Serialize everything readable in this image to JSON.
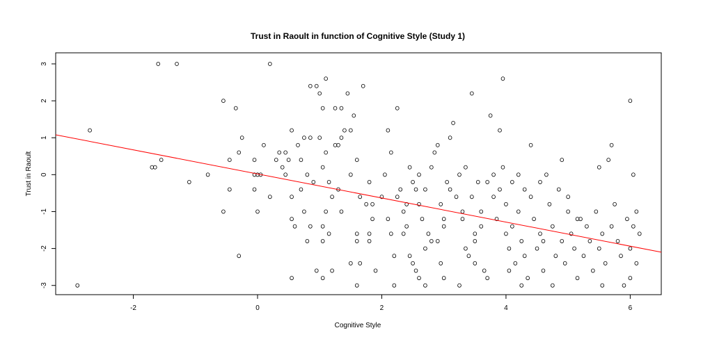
{
  "chart_data": {
    "type": "scatter",
    "title": "Trust in Raoult in function of Cognitive Style (Study 1)",
    "xlabel": "Cognitive Style",
    "ylabel": "Trust in Raoult",
    "xlim": [
      -3.25,
      6.5
    ],
    "ylim": [
      -3.25,
      3.3
    ],
    "xticks": [
      "-2",
      "0",
      "2",
      "4",
      "6"
    ],
    "yticks": [
      "-3",
      "-2",
      "-1",
      "0",
      "1",
      "2",
      "3"
    ],
    "grid": false,
    "point_style": "open-circle",
    "colors": {
      "points": "#000000",
      "fit_line": "#ff0000"
    },
    "fit_line": {
      "x": [
        -3.25,
        6.5
      ],
      "y": [
        1.08,
        -2.1
      ]
    },
    "points": [
      [
        -2.9,
        -3
      ],
      [
        -2.7,
        1.2
      ],
      [
        -1.6,
        3
      ],
      [
        -1.3,
        3
      ],
      [
        -1.55,
        0.4
      ],
      [
        -1.7,
        0.2
      ],
      [
        -1.65,
        0.2
      ],
      [
        -1.1,
        -0.2
      ],
      [
        -0.8,
        0
      ],
      [
        -0.55,
        2
      ],
      [
        -0.35,
        1.8
      ],
      [
        -0.3,
        0.6
      ],
      [
        -0.25,
        1
      ],
      [
        -0.45,
        0.4
      ],
      [
        -0.55,
        -1
      ],
      [
        -0.45,
        -0.4
      ],
      [
        -0.3,
        -2.2
      ],
      [
        -0.05,
        0
      ],
      [
        0,
        0
      ],
      [
        0.05,
        0
      ],
      [
        0.1,
        0.8
      ],
      [
        -0.05,
        0.4
      ],
      [
        -0.05,
        -0.4
      ],
      [
        0,
        -1
      ],
      [
        0.2,
        3
      ],
      [
        0.2,
        -0.6
      ],
      [
        0.35,
        0.6
      ],
      [
        0.45,
        0.6
      ],
      [
        0.4,
        0.2
      ],
      [
        0.45,
        0
      ],
      [
        0.5,
        0.4
      ],
      [
        0.55,
        1.2
      ],
      [
        0.55,
        -0.6
      ],
      [
        0.6,
        -1.4
      ],
      [
        0.55,
        -1.2
      ],
      [
        0.65,
        0.8
      ],
      [
        0.7,
        0.4
      ],
      [
        0.75,
        1
      ],
      [
        0.8,
        0
      ],
      [
        0.7,
        -0.4
      ],
      [
        0.75,
        -1
      ],
      [
        0.8,
        -1.8
      ],
      [
        0.85,
        1
      ],
      [
        0.85,
        -1.4
      ],
      [
        0.55,
        -2.8
      ],
      [
        0.85,
        2.4
      ],
      [
        0.95,
        2.4
      ],
      [
        1,
        2.2
      ],
      [
        1,
        1
      ],
      [
        1.05,
        1.8
      ],
      [
        1.1,
        2.6
      ],
      [
        1.1,
        0.6
      ],
      [
        1.05,
        0.2
      ],
      [
        1.15,
        -0.2
      ],
      [
        1.2,
        -0.6
      ],
      [
        1.1,
        -1
      ],
      [
        1.05,
        -1.4
      ],
      [
        1.15,
        -1.6
      ],
      [
        1.05,
        -1.8
      ],
      [
        1.25,
        1.8
      ],
      [
        1.25,
        0.8
      ],
      [
        1.3,
        0.8
      ],
      [
        1.3,
        -0.4
      ],
      [
        1.35,
        1
      ],
      [
        1.35,
        -1
      ],
      [
        1.4,
        1.2
      ],
      [
        1.45,
        2.2
      ],
      [
        1.5,
        1.2
      ],
      [
        1.55,
        1.6
      ],
      [
        1.5,
        0
      ],
      [
        1.6,
        0.4
      ],
      [
        1.6,
        -1.6
      ],
      [
        1.6,
        -1.8
      ],
      [
        1.65,
        -2.4
      ],
      [
        1.7,
        2.4
      ],
      [
        1.75,
        -0.8
      ],
      [
        1.8,
        -0.2
      ],
      [
        1.8,
        -1.6
      ],
      [
        1.8,
        -1.8
      ],
      [
        1.85,
        -0.8
      ],
      [
        1.9,
        -2.6
      ],
      [
        0.95,
        -2.6
      ],
      [
        1.05,
        -2.8
      ],
      [
        1.2,
        -2.6
      ],
      [
        1.5,
        -2.4
      ],
      [
        1.6,
        -3
      ],
      [
        2,
        -0.6
      ],
      [
        2.05,
        0
      ],
      [
        2.1,
        1.2
      ],
      [
        2.15,
        0.6
      ],
      [
        2.1,
        -1.2
      ],
      [
        2.15,
        -1.6
      ],
      [
        2.2,
        -2.2
      ],
      [
        2.25,
        1.8
      ],
      [
        2.25,
        -0.6
      ],
      [
        2.3,
        -0.4
      ],
      [
        2.35,
        -1
      ],
      [
        2.4,
        -1.4
      ],
      [
        2.45,
        0.2
      ],
      [
        2.5,
        -0.2
      ],
      [
        2.55,
        -0.4
      ],
      [
        2.6,
        0
      ],
      [
        2.6,
        -0.8
      ],
      [
        2.65,
        -1.2
      ],
      [
        2.7,
        -2
      ],
      [
        2.7,
        -0.4
      ],
      [
        2.75,
        -1.6
      ],
      [
        2.8,
        -1.8
      ],
      [
        2.2,
        -3
      ],
      [
        2.45,
        -2.2
      ],
      [
        2.5,
        -2.4
      ],
      [
        2.55,
        -2.6
      ],
      [
        2.6,
        -2.8
      ],
      [
        2.7,
        -3
      ],
      [
        2.8,
        0.2
      ],
      [
        2.85,
        0.6
      ],
      [
        2.9,
        0.8
      ],
      [
        2.95,
        -0.8
      ],
      [
        3,
        -1.2
      ],
      [
        3,
        -1.4
      ],
      [
        3.05,
        -0.2
      ],
      [
        3.1,
        1
      ],
      [
        3.15,
        1.4
      ],
      [
        3.1,
        -0.4
      ],
      [
        3.2,
        -0.6
      ],
      [
        3.25,
        0
      ],
      [
        3.3,
        -1
      ],
      [
        3.3,
        -1.2
      ],
      [
        3.35,
        -2
      ],
      [
        3.4,
        -2.2
      ],
      [
        3.45,
        2.2
      ],
      [
        3.45,
        -0.6
      ],
      [
        3.5,
        -1.6
      ],
      [
        3.5,
        -1.8
      ],
      [
        3.55,
        -0.2
      ],
      [
        3.6,
        -1
      ],
      [
        3.6,
        -1.4
      ],
      [
        3.65,
        -2.6
      ],
      [
        3.7,
        -2.8
      ],
      [
        3.75,
        1.6
      ],
      [
        3.8,
        0
      ],
      [
        3.8,
        -0.6
      ],
      [
        3.85,
        -1.2
      ],
      [
        3.9,
        1.2
      ],
      [
        3.9,
        -0.4
      ],
      [
        3.95,
        2.6
      ],
      [
        3.95,
        0.2
      ],
      [
        4,
        -0.8
      ],
      [
        4,
        -1.6
      ],
      [
        4.05,
        -2
      ],
      [
        4.1,
        -0.2
      ],
      [
        4.1,
        -1.4
      ],
      [
        4.15,
        -2.4
      ],
      [
        4.2,
        0
      ],
      [
        4.2,
        -1
      ],
      [
        4.25,
        -1.8
      ],
      [
        4.3,
        -0.4
      ],
      [
        4.3,
        -2.2
      ],
      [
        4.35,
        -2.8
      ],
      [
        4.4,
        0.8
      ],
      [
        4.4,
        -0.6
      ],
      [
        4.45,
        -1.2
      ],
      [
        4.5,
        -2
      ],
      [
        4.55,
        -0.2
      ],
      [
        4.55,
        -1.6
      ],
      [
        4.6,
        -2.6
      ],
      [
        4.65,
        0
      ],
      [
        4.7,
        -0.8
      ],
      [
        4.75,
        -1.4
      ],
      [
        4.75,
        -3
      ],
      [
        4.8,
        -2.2
      ],
      [
        4.85,
        -0.4
      ],
      [
        4.9,
        0.4
      ],
      [
        4.9,
        -1.8
      ],
      [
        4.95,
        -2.4
      ],
      [
        5,
        -0.6
      ],
      [
        5,
        -1
      ],
      [
        5.05,
        -1.6
      ],
      [
        5.1,
        -2
      ],
      [
        5.15,
        -2.8
      ],
      [
        5.2,
        -1.2
      ],
      [
        5.25,
        -2.2
      ],
      [
        5.3,
        -1.4
      ],
      [
        5.35,
        -1.8
      ],
      [
        5.4,
        -2.6
      ],
      [
        5.45,
        -1
      ],
      [
        5.5,
        0.2
      ],
      [
        5.5,
        -2
      ],
      [
        5.55,
        -1.6
      ],
      [
        5.6,
        -2.4
      ],
      [
        5.65,
        0.4
      ],
      [
        5.7,
        0.8
      ],
      [
        5.7,
        -1.4
      ],
      [
        5.75,
        -0.8
      ],
      [
        5.8,
        -1.8
      ],
      [
        5.85,
        -2.2
      ],
      [
        5.9,
        -3
      ],
      [
        5.95,
        -1.2
      ],
      [
        6,
        2
      ],
      [
        6,
        -2
      ],
      [
        6,
        -2.8
      ],
      [
        6.05,
        0
      ],
      [
        6.05,
        -1.4
      ],
      [
        6.1,
        -1
      ],
      [
        6.1,
        -2.4
      ],
      [
        6.15,
        -1.6
      ],
      [
        5.55,
        -3
      ],
      [
        4.25,
        -3
      ],
      [
        3.25,
        -3
      ],
      [
        3,
        -2.8
      ],
      [
        2.95,
        -2.4
      ],
      [
        1.35,
        1.8
      ],
      [
        1.85,
        -1.2
      ],
      [
        2.35,
        -1.6
      ],
      [
        2.9,
        -1.8
      ],
      [
        3.5,
        -2.4
      ],
      [
        4.05,
        -2.6
      ],
      [
        4.6,
        -1.8
      ],
      [
        5.15,
        -1.2
      ],
      [
        3.7,
        -0.2
      ],
      [
        2.4,
        -0.8
      ],
      [
        1.65,
        -0.6
      ],
      [
        0.3,
        0.4
      ],
      [
        0.9,
        -0.2
      ],
      [
        3.35,
        0.2
      ]
    ]
  }
}
